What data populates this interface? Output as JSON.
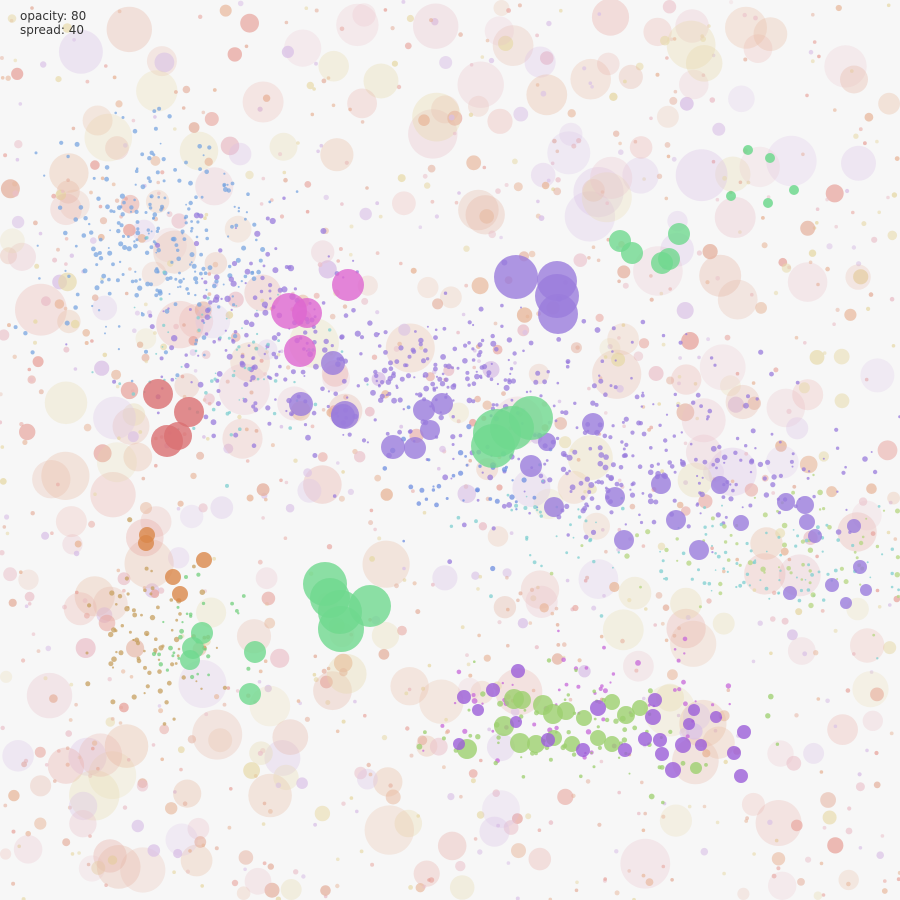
{
  "readout": {
    "opacity_line": "opacity: 80",
    "spread_line": "spread: 40"
  },
  "controls": {
    "opacity": 80,
    "spread": 40
  },
  "background_color": "#f7f7f7",
  "chart_data": {
    "type": "scatter",
    "title": "",
    "xlabel": "",
    "ylabel": "",
    "grid": false,
    "legend": "none",
    "series": [
      {
        "color": "#9a7cdc",
        "points": [
          [
            516,
            277,
            22
          ],
          [
            557,
            281,
            20
          ],
          [
            557,
            296,
            22
          ],
          [
            558,
            314,
            20
          ],
          [
            333,
            363,
            12
          ],
          [
            301,
            404,
            12
          ],
          [
            345,
            415,
            14
          ],
          [
            343,
            416,
            12
          ],
          [
            393,
            447,
            12
          ],
          [
            415,
            448,
            11
          ],
          [
            424,
            410,
            11
          ],
          [
            442,
            404,
            11
          ],
          [
            430,
            430,
            10
          ],
          [
            547,
            442,
            9
          ],
          [
            531,
            466,
            11
          ],
          [
            593,
            424,
            11
          ],
          [
            615,
            497,
            10
          ],
          [
            554,
            507,
            10
          ],
          [
            624,
            540,
            10
          ],
          [
            661,
            484,
            10
          ],
          [
            676,
            520,
            10
          ],
          [
            699,
            550,
            10
          ],
          [
            720,
            485,
            9
          ],
          [
            741,
            523,
            8
          ],
          [
            786,
            502,
            9
          ],
          [
            805,
            505,
            9
          ],
          [
            807,
            522,
            8
          ],
          [
            815,
            536,
            7
          ],
          [
            854,
            526,
            7
          ],
          [
            790,
            593,
            7
          ],
          [
            832,
            585,
            7
          ],
          [
            846,
            603,
            6
          ],
          [
            860,
            567,
            7
          ],
          [
            866,
            590,
            6
          ]
        ]
      },
      {
        "color": "#6fd88e",
        "points": [
          [
            620,
            241,
            11
          ],
          [
            632,
            253,
            11
          ],
          [
            679,
            234,
            11
          ],
          [
            662,
            263,
            11
          ],
          [
            669,
            259,
            11
          ],
          [
            493,
            446,
            22
          ],
          [
            497,
            433,
            24
          ],
          [
            512,
            428,
            22
          ],
          [
            531,
            418,
            22
          ],
          [
            325,
            584,
            22
          ],
          [
            330,
            598,
            20
          ],
          [
            340,
            612,
            22
          ],
          [
            370,
            606,
            21
          ],
          [
            341,
            629,
            23
          ],
          [
            202,
            633,
            11
          ],
          [
            193,
            648,
            11
          ],
          [
            190,
            660,
            10
          ],
          [
            255,
            652,
            11
          ],
          [
            250,
            694,
            11
          ]
        ]
      },
      {
        "color": "#dd66d0",
        "points": [
          [
            348,
            285,
            16
          ],
          [
            289,
            311,
            18
          ],
          [
            307,
            313,
            15
          ],
          [
            300,
            351,
            16
          ]
        ]
      },
      {
        "color": "#d96f72",
        "points": [
          [
            158,
            394,
            15
          ],
          [
            189,
            412,
            15
          ],
          [
            178,
            436,
            14
          ],
          [
            167,
            441,
            16
          ]
        ]
      },
      {
        "color": "#9ccf6e",
        "points": [
          [
            514,
            699,
            10
          ],
          [
            522,
            700,
            9
          ],
          [
            543,
            705,
            10
          ],
          [
            553,
            714,
            10
          ],
          [
            566,
            711,
            9
          ],
          [
            584,
            718,
            8
          ],
          [
            612,
            702,
            8
          ],
          [
            626,
            715,
            9
          ],
          [
            640,
            708,
            8
          ],
          [
            504,
            726,
            10
          ],
          [
            520,
            743,
            10
          ],
          [
            536,
            744,
            9
          ],
          [
            554,
            738,
            8
          ],
          [
            572,
            744,
            8
          ],
          [
            598,
            738,
            8
          ],
          [
            612,
            744,
            8
          ],
          [
            467,
            749,
            10
          ],
          [
            696,
            768,
            6
          ]
        ]
      },
      {
        "color": "#9b5ed8",
        "points": [
          [
            464,
            697,
            7
          ],
          [
            493,
            690,
            7
          ],
          [
            518,
            671,
            7
          ],
          [
            598,
            708,
            8
          ],
          [
            653,
            717,
            8
          ],
          [
            655,
            700,
            7
          ],
          [
            689,
            724,
            6
          ],
          [
            694,
            710,
            6
          ],
          [
            716,
            717,
            6
          ],
          [
            744,
            732,
            7
          ],
          [
            734,
            753,
            7
          ],
          [
            741,
            776,
            7
          ],
          [
            683,
            745,
            8
          ],
          [
            673,
            770,
            8
          ],
          [
            662,
            754,
            7
          ],
          [
            645,
            739,
            7
          ],
          [
            625,
            750,
            7
          ],
          [
            583,
            750,
            7
          ],
          [
            548,
            740,
            7
          ],
          [
            516,
            722,
            6
          ],
          [
            478,
            710,
            6
          ],
          [
            459,
            744,
            6
          ],
          [
            660,
            740,
            7
          ],
          [
            701,
            745,
            6
          ]
        ]
      },
      {
        "color": "#d9874a",
        "points": [
          [
            147,
            535,
            8
          ],
          [
            146,
            543,
            8
          ],
          [
            204,
            560,
            8
          ],
          [
            173,
            577,
            8
          ],
          [
            180,
            594,
            8
          ]
        ]
      }
    ],
    "small_points": [
      {
        "color": "#7aa5e0",
        "cx": 165,
        "cy": 240,
        "sx": 55,
        "sy": 55,
        "n": 260,
        "rmin": 0.9,
        "rmax": 2.6
      },
      {
        "color": "#9a7cdc",
        "cx": 260,
        "cy": 320,
        "sx": 45,
        "sy": 45,
        "n": 120,
        "rmin": 1,
        "rmax": 3.2
      },
      {
        "color": "#9a7cdc",
        "cx": 430,
        "cy": 380,
        "sx": 120,
        "sy": 35,
        "n": 280,
        "rmin": 1,
        "rmax": 3
      },
      {
        "color": "#9a7cdc",
        "cx": 640,
        "cy": 470,
        "sx": 110,
        "sy": 35,
        "n": 230,
        "rmin": 1,
        "rmax": 3
      },
      {
        "color": "#7fcfd0",
        "cx": 230,
        "cy": 370,
        "sx": 50,
        "sy": 45,
        "n": 70,
        "rmin": 0.8,
        "rmax": 2
      },
      {
        "color": "#7fcfd0",
        "cx": 780,
        "cy": 565,
        "sx": 70,
        "sy": 25,
        "n": 80,
        "rmin": 0.8,
        "rmax": 2
      },
      {
        "color": "#b5d680",
        "cx": 760,
        "cy": 545,
        "sx": 90,
        "sy": 30,
        "n": 70,
        "rmin": 1,
        "rmax": 2.8
      },
      {
        "color": "#c7a060",
        "cx": 155,
        "cy": 640,
        "sx": 32,
        "sy": 35,
        "n": 80,
        "rmin": 1,
        "rmax": 2.8
      },
      {
        "color": "#73cf7e",
        "cx": 190,
        "cy": 635,
        "sx": 25,
        "sy": 25,
        "n": 30,
        "rmin": 1,
        "rmax": 2.5
      },
      {
        "color": "#c768d9",
        "cx": 600,
        "cy": 700,
        "sx": 90,
        "sy": 25,
        "n": 60,
        "rmin": 1,
        "rmax": 3
      },
      {
        "color": "#9ccf6e",
        "cx": 580,
        "cy": 735,
        "sx": 85,
        "sy": 25,
        "n": 70,
        "rmin": 1,
        "rmax": 3
      },
      {
        "color": "#6f8fe0",
        "cx": 460,
        "cy": 480,
        "sx": 40,
        "sy": 25,
        "n": 40,
        "rmin": 1,
        "rmax": 2.8
      },
      {
        "color": "#7fcfd0",
        "cx": 570,
        "cy": 535,
        "sx": 60,
        "sy": 25,
        "n": 40,
        "rmin": 0.8,
        "rmax": 2
      }
    ],
    "background_bubbles": {
      "colors": [
        "#e5b2a0",
        "#e8b79b",
        "#eac0c9",
        "#e7d9a8",
        "#d9c0e6",
        "#e8a7a0"
      ],
      "count": 1300,
      "rmin": 1.8,
      "rmax": 26
    },
    "green_small": [
      [
        748,
        150,
        5
      ],
      [
        770,
        158,
        5
      ],
      [
        794,
        190,
        5
      ],
      [
        768,
        203,
        5
      ],
      [
        731,
        196,
        5
      ]
    ]
  }
}
